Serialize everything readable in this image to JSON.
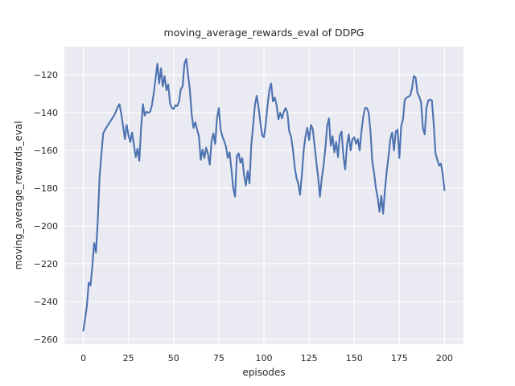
{
  "figure": {
    "title": "moving_average_rewards_eval of DDPG",
    "xlabel": "episodes",
    "ylabel": "moving_average_rewards_eval"
  },
  "chart_data": {
    "type": "line",
    "title": "moving_average_rewards_eval of DDPG",
    "xlabel": "episodes",
    "ylabel": "moving_average_rewards_eval",
    "x_ticks": [
      0,
      25,
      50,
      75,
      100,
      125,
      150,
      175,
      200
    ],
    "y_ticks": [
      -120,
      -140,
      -160,
      -180,
      -200,
      -220,
      -240,
      -260
    ],
    "xlim": [
      -10.5,
      210.5
    ],
    "ylim": [
      -262.5,
      -105
    ],
    "grid": true,
    "legend": false,
    "style": "seaborn-darkgrid",
    "colors": {
      "line": "#4C72B0",
      "plot_background": "#EAEAF2",
      "grid": "#FFFFFF",
      "text": "#262626",
      "figure_background": "#FFFFFF"
    },
    "series": [
      {
        "name": "moving_average_rewards_eval",
        "x_start": 0,
        "x_step": 1,
        "values": [
          -255.5,
          -249,
          -242,
          -230,
          -231.5,
          -221,
          -209,
          -214,
          -197,
          -174,
          -162,
          -151,
          -149,
          -147.5,
          -146,
          -144.5,
          -143,
          -141.5,
          -139.5,
          -137,
          -135.5,
          -140.5,
          -147,
          -154,
          -146.5,
          -152,
          -155.5,
          -150.5,
          -157,
          -163.5,
          -159,
          -165.5,
          -148,
          -135.5,
          -141.5,
          -139.5,
          -140,
          -139.5,
          -136,
          -129.5,
          -122,
          -114,
          -124.5,
          -116.5,
          -126,
          -120.5,
          -128,
          -125,
          -135,
          -137.5,
          -138,
          -136,
          -136.5,
          -134,
          -127.5,
          -126,
          -114,
          -111.5,
          -120,
          -128,
          -141,
          -148,
          -145,
          -149,
          -152.5,
          -165,
          -159.5,
          -164,
          -158.5,
          -162,
          -167.5,
          -155,
          -151,
          -156.5,
          -143,
          -137.5,
          -149,
          -152.5,
          -155,
          -158,
          -164,
          -161,
          -170,
          -180,
          -184.5,
          -163,
          -161.5,
          -166.5,
          -164,
          -173,
          -178.5,
          -171,
          -177.5,
          -157,
          -147,
          -136,
          -131,
          -137,
          -145,
          -152,
          -153,
          -146,
          -136,
          -128,
          -124.5,
          -134,
          -132,
          -136,
          -143.5,
          -140,
          -143,
          -139.5,
          -137.5,
          -140,
          -150,
          -152.5,
          -159,
          -168.5,
          -174.5,
          -177.5,
          -183.5,
          -173,
          -160,
          -152.5,
          -148,
          -154.5,
          -146.5,
          -148.5,
          -157,
          -166,
          -174,
          -184.5,
          -175,
          -168,
          -159,
          -147,
          -143,
          -157.5,
          -152.5,
          -161,
          -155.5,
          -163.5,
          -152,
          -150,
          -163,
          -170,
          -157,
          -151.5,
          -160,
          -154,
          -153,
          -156.5,
          -154,
          -160,
          -150,
          -142,
          -137.5,
          -137.5,
          -140,
          -150,
          -166,
          -172,
          -180,
          -185,
          -192.5,
          -184,
          -193.5,
          -181,
          -171,
          -163,
          -154,
          -150.5,
          -160,
          -150,
          -149,
          -164,
          -147,
          -143.5,
          -133,
          -132,
          -131.5,
          -131,
          -127,
          -120.5,
          -121.5,
          -129.5,
          -131.5,
          -134.5,
          -148,
          -151.5,
          -137.5,
          -133.5,
          -133,
          -133.5,
          -146,
          -161.5,
          -165,
          -168,
          -167,
          -172.5,
          -181
        ]
      }
    ]
  }
}
